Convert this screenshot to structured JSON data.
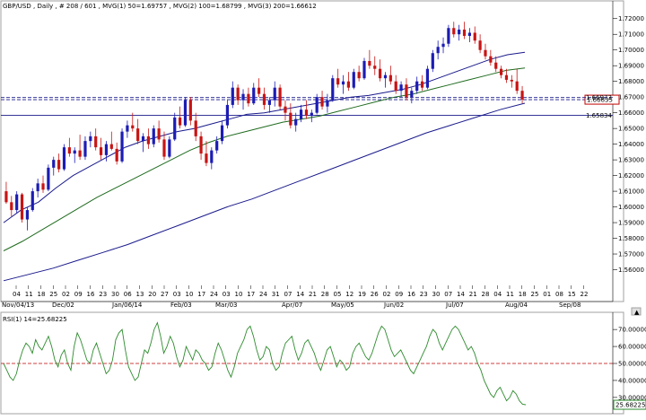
{
  "chart_data": [
    {
      "type": "candlestick",
      "title": "GBP/USD , Daily , # 208 / 601 , MVG(1) 50=1.69757 , MVG(2) 100=1.68799 , MVG(3) 200=1.66612",
      "ylim": [
        1.55,
        1.725
      ],
      "y_ticks": [
        "1.72000",
        "1.71000",
        "1.70000",
        "1.69000",
        "1.68000",
        "1.67000",
        "1.66000",
        "1.65000",
        "1.64000",
        "1.63000",
        "1.62000",
        "1.61000",
        "1.60000",
        "1.59000",
        "1.58000",
        "1.57000",
        "1.56000"
      ],
      "x_tick_days": [
        "04",
        "11",
        "18",
        "25",
        "02",
        "09",
        "16",
        "23",
        "30",
        "06",
        "13",
        "20",
        "27",
        "03",
        "10",
        "17",
        "24",
        "03",
        "10",
        "17",
        "24",
        "31",
        "07",
        "14",
        "21",
        "28",
        "05",
        "12",
        "19",
        "26",
        "02",
        "09",
        "16",
        "23",
        "30",
        "07",
        "14",
        "21",
        "28",
        "04",
        "11",
        "18",
        "25",
        "01",
        "08",
        "15",
        "22"
      ],
      "x_month_labels": [
        "Nov/04/13",
        "Dec/02",
        "Jan/06/14",
        "Feb/03",
        "Mar/03",
        "Apr/07",
        "May/05",
        "Jun/02",
        "Jul/07",
        "Aug/04",
        "Sep/08"
      ],
      "horizontal_lines": [
        {
          "label": "1.66835",
          "value": 1.66835,
          "style": "dashed",
          "boxed": true
        },
        {
          "label": "1.65834",
          "value": 1.65834,
          "style": "solid",
          "boxed": false
        },
        {
          "label": "1.66973",
          "value": 1.66973,
          "style": "dashed",
          "boxed": false
        }
      ],
      "series": [
        {
          "name": "MVG(1) 50",
          "value": 1.69757,
          "values": [
            1.59,
            1.598,
            1.603,
            1.612,
            1.62,
            1.626,
            1.632,
            1.638,
            1.642,
            1.645,
            1.648,
            1.65,
            1.653,
            1.656,
            1.659,
            1.66,
            1.662,
            1.664,
            1.666,
            1.668,
            1.67,
            1.671,
            1.673,
            1.675,
            1.678,
            1.682,
            1.686,
            1.69,
            1.694,
            1.697,
            1.6985
          ]
        },
        {
          "name": "MVG(2) 100",
          "value": 1.68799,
          "values": [
            1.572,
            1.578,
            1.585,
            1.592,
            1.599,
            1.606,
            1.612,
            1.618,
            1.624,
            1.63,
            1.636,
            1.641,
            1.645,
            1.648,
            1.651,
            1.654,
            1.656,
            1.658,
            1.661,
            1.664,
            1.667,
            1.67,
            1.672,
            1.675,
            1.678,
            1.681,
            1.684,
            1.687,
            1.6885
          ]
        },
        {
          "name": "MVG(3) 200",
          "value": 1.66612,
          "values": [
            1.553,
            1.557,
            1.561,
            1.566,
            1.571,
            1.576,
            1.582,
            1.588,
            1.594,
            1.6,
            1.605,
            1.611,
            1.617,
            1.623,
            1.629,
            1.635,
            1.641,
            1.647,
            1.652,
            1.657,
            1.662,
            1.6661
          ]
        },
        {
          "name": "GBP/USD",
          "ohlc": [
            [
              1.61,
              1.616,
              1.602,
              1.603
            ],
            [
              1.603,
              1.607,
              1.594,
              1.598
            ],
            [
              1.598,
              1.61,
              1.596,
              1.608
            ],
            [
              1.608,
              1.609,
              1.59,
              1.592
            ],
            [
              1.592,
              1.6,
              1.585,
              1.598
            ],
            [
              1.598,
              1.612,
              1.597,
              1.61
            ],
            [
              1.61,
              1.618,
              1.606,
              1.615
            ],
            [
              1.615,
              1.62,
              1.609,
              1.611
            ],
            [
              1.611,
              1.627,
              1.61,
              1.625
            ],
            [
              1.625,
              1.632,
              1.62,
              1.63
            ],
            [
              1.63,
              1.634,
              1.622,
              1.624
            ],
            [
              1.624,
              1.64,
              1.623,
              1.638
            ],
            [
              1.638,
              1.644,
              1.632,
              1.634
            ],
            [
              1.634,
              1.638,
              1.628,
              1.636
            ],
            [
              1.636,
              1.646,
              1.63,
              1.632
            ],
            [
              1.632,
              1.645,
              1.63,
              1.642
            ],
            [
              1.642,
              1.648,
              1.638,
              1.645
            ],
            [
              1.645,
              1.65,
              1.636,
              1.638
            ],
            [
              1.638,
              1.644,
              1.63,
              1.633
            ],
            [
              1.633,
              1.642,
              1.629,
              1.64
            ],
            [
              1.64,
              1.648,
              1.636,
              1.637
            ],
            [
              1.637,
              1.641,
              1.627,
              1.629
            ],
            [
              1.629,
              1.65,
              1.628,
              1.648
            ],
            [
              1.648,
              1.655,
              1.644,
              1.652
            ],
            [
              1.652,
              1.66,
              1.648,
              1.65
            ],
            [
              1.65,
              1.656,
              1.64,
              1.642
            ],
            [
              1.642,
              1.647,
              1.635,
              1.645
            ],
            [
              1.645,
              1.65,
              1.637,
              1.64
            ],
            [
              1.64,
              1.652,
              1.638,
              1.65
            ],
            [
              1.65,
              1.655,
              1.641,
              1.643
            ],
            [
              1.643,
              1.648,
              1.63,
              1.632
            ],
            [
              1.632,
              1.645,
              1.631,
              1.643
            ],
            [
              1.643,
              1.66,
              1.642,
              1.657
            ],
            [
              1.657,
              1.664,
              1.65,
              1.652
            ],
            [
              1.652,
              1.67,
              1.651,
              1.668
            ],
            [
              1.668,
              1.67,
              1.652,
              1.655
            ],
            [
              1.655,
              1.66,
              1.642,
              1.645
            ],
            [
              1.645,
              1.648,
              1.63,
              1.634
            ],
            [
              1.634,
              1.642,
              1.626,
              1.628
            ],
            [
              1.628,
              1.638,
              1.624,
              1.636
            ],
            [
              1.636,
              1.645,
              1.634,
              1.642
            ],
            [
              1.642,
              1.655,
              1.64,
              1.652
            ],
            [
              1.652,
              1.668,
              1.65,
              1.665
            ],
            [
              1.665,
              1.68,
              1.663,
              1.676
            ],
            [
              1.676,
              1.678,
              1.665,
              1.668
            ],
            [
              1.668,
              1.675,
              1.662,
              1.672
            ],
            [
              1.672,
              1.676,
              1.664,
              1.666
            ],
            [
              1.666,
              1.679,
              1.665,
              1.676
            ],
            [
              1.676,
              1.682,
              1.67,
              1.672
            ],
            [
              1.672,
              1.676,
              1.662,
              1.665
            ],
            [
              1.665,
              1.67,
              1.66,
              1.668
            ],
            [
              1.668,
              1.68,
              1.664,
              1.676
            ],
            [
              1.676,
              1.678,
              1.662,
              1.664
            ],
            [
              1.664,
              1.668,
              1.655,
              1.66
            ],
            [
              1.66,
              1.666,
              1.65,
              1.652
            ],
            [
              1.652,
              1.66,
              1.648,
              1.656
            ],
            [
              1.656,
              1.665,
              1.654,
              1.662
            ],
            [
              1.662,
              1.668,
              1.656,
              1.658
            ],
            [
              1.658,
              1.662,
              1.654,
              1.66
            ],
            [
              1.66,
              1.672,
              1.659,
              1.67
            ],
            [
              1.67,
              1.674,
              1.662,
              1.664
            ],
            [
              1.664,
              1.672,
              1.66,
              1.668
            ],
            [
              1.668,
              1.684,
              1.667,
              1.682
            ],
            [
              1.682,
              1.688,
              1.676,
              1.678
            ],
            [
              1.678,
              1.684,
              1.672,
              1.68
            ],
            [
              1.68,
              1.686,
              1.674,
              1.676
            ],
            [
              1.676,
              1.688,
              1.675,
              1.686
            ],
            [
              1.686,
              1.69,
              1.68,
              1.682
            ],
            [
              1.682,
              1.695,
              1.681,
              1.693
            ],
            [
              1.693,
              1.7,
              1.688,
              1.69
            ],
            [
              1.69,
              1.696,
              1.684,
              1.688
            ],
            [
              1.688,
              1.694,
              1.68,
              1.682
            ],
            [
              1.682,
              1.686,
              1.676,
              1.684
            ],
            [
              1.684,
              1.69,
              1.678,
              1.68
            ],
            [
              1.68,
              1.684,
              1.672,
              1.674
            ],
            [
              1.674,
              1.68,
              1.67,
              1.678
            ],
            [
              1.678,
              1.682,
              1.668,
              1.67
            ],
            [
              1.67,
              1.676,
              1.666,
              1.674
            ],
            [
              1.674,
              1.683,
              1.672,
              1.68
            ],
            [
              1.68,
              1.684,
              1.674,
              1.676
            ],
            [
              1.676,
              1.69,
              1.675,
              1.688
            ],
            [
              1.688,
              1.7,
              1.686,
              1.698
            ],
            [
              1.698,
              1.706,
              1.694,
              1.702
            ],
            [
              1.702,
              1.708,
              1.698,
              1.704
            ],
            [
              1.704,
              1.716,
              1.702,
              1.714
            ],
            [
              1.714,
              1.718,
              1.708,
              1.71
            ],
            [
              1.71,
              1.716,
              1.706,
              1.713
            ],
            [
              1.713,
              1.718,
              1.707,
              1.709
            ],
            [
              1.709,
              1.714,
              1.705,
              1.711
            ],
            [
              1.711,
              1.715,
              1.704,
              1.706
            ],
            [
              1.706,
              1.71,
              1.698,
              1.7
            ],
            [
              1.7,
              1.704,
              1.694,
              1.696
            ],
            [
              1.696,
              1.7,
              1.69,
              1.692
            ],
            [
              1.692,
              1.696,
              1.686,
              1.688
            ],
            [
              1.688,
              1.69,
              1.682,
              1.684
            ],
            [
              1.684,
              1.688,
              1.679,
              1.681
            ],
            [
              1.681,
              1.684,
              1.676,
              1.68
            ],
            [
              1.68,
              1.688,
              1.672,
              1.674
            ],
            [
              1.674,
              1.677,
              1.666,
              1.6684
            ]
          ]
        }
      ]
    },
    {
      "type": "line",
      "title": "RSI(1) 14=25.68225",
      "ylim": [
        22,
        78
      ],
      "y_ticks": [
        "70.00000",
        "60.00000",
        "50.00000",
        "40.00000",
        "30.00000"
      ],
      "value_box": "25.68225",
      "reference_line": 50,
      "series": [
        {
          "name": "RSI(1) 14",
          "values": [
            50,
            46,
            42,
            40,
            44,
            52,
            58,
            62,
            60,
            56,
            64,
            60,
            58,
            62,
            66,
            60,
            52,
            48,
            55,
            58,
            50,
            46,
            60,
            68,
            64,
            58,
            52,
            50,
            58,
            62,
            56,
            50,
            44,
            46,
            52,
            64,
            68,
            70,
            58,
            48,
            44,
            40,
            42,
            50,
            58,
            56,
            62,
            70,
            74,
            66,
            56,
            60,
            66,
            62,
            54,
            48,
            52,
            60,
            56,
            52,
            58,
            56,
            52,
            50,
            46,
            48,
            56,
            62,
            58,
            52,
            46,
            42,
            48,
            56,
            60,
            64,
            70,
            72,
            66,
            58,
            52,
            54,
            60,
            58,
            50,
            46,
            48,
            56,
            62,
            64,
            66,
            58,
            52,
            56,
            62,
            64,
            60,
            56,
            50,
            46,
            52,
            58,
            60,
            54,
            48,
            52,
            50,
            46,
            48,
            56,
            60,
            62,
            58,
            54,
            52,
            56,
            62,
            68,
            72,
            70,
            64,
            58,
            54,
            56,
            58,
            54,
            50,
            46,
            44,
            48,
            52,
            56,
            60,
            66,
            70,
            68,
            62,
            58,
            62,
            66,
            70,
            72,
            70,
            66,
            62,
            58,
            60,
            56,
            50,
            46,
            40,
            36,
            32,
            30,
            34,
            36,
            32,
            28,
            30,
            34,
            32,
            28,
            26,
            25.7
          ]
        }
      ]
    }
  ]
}
